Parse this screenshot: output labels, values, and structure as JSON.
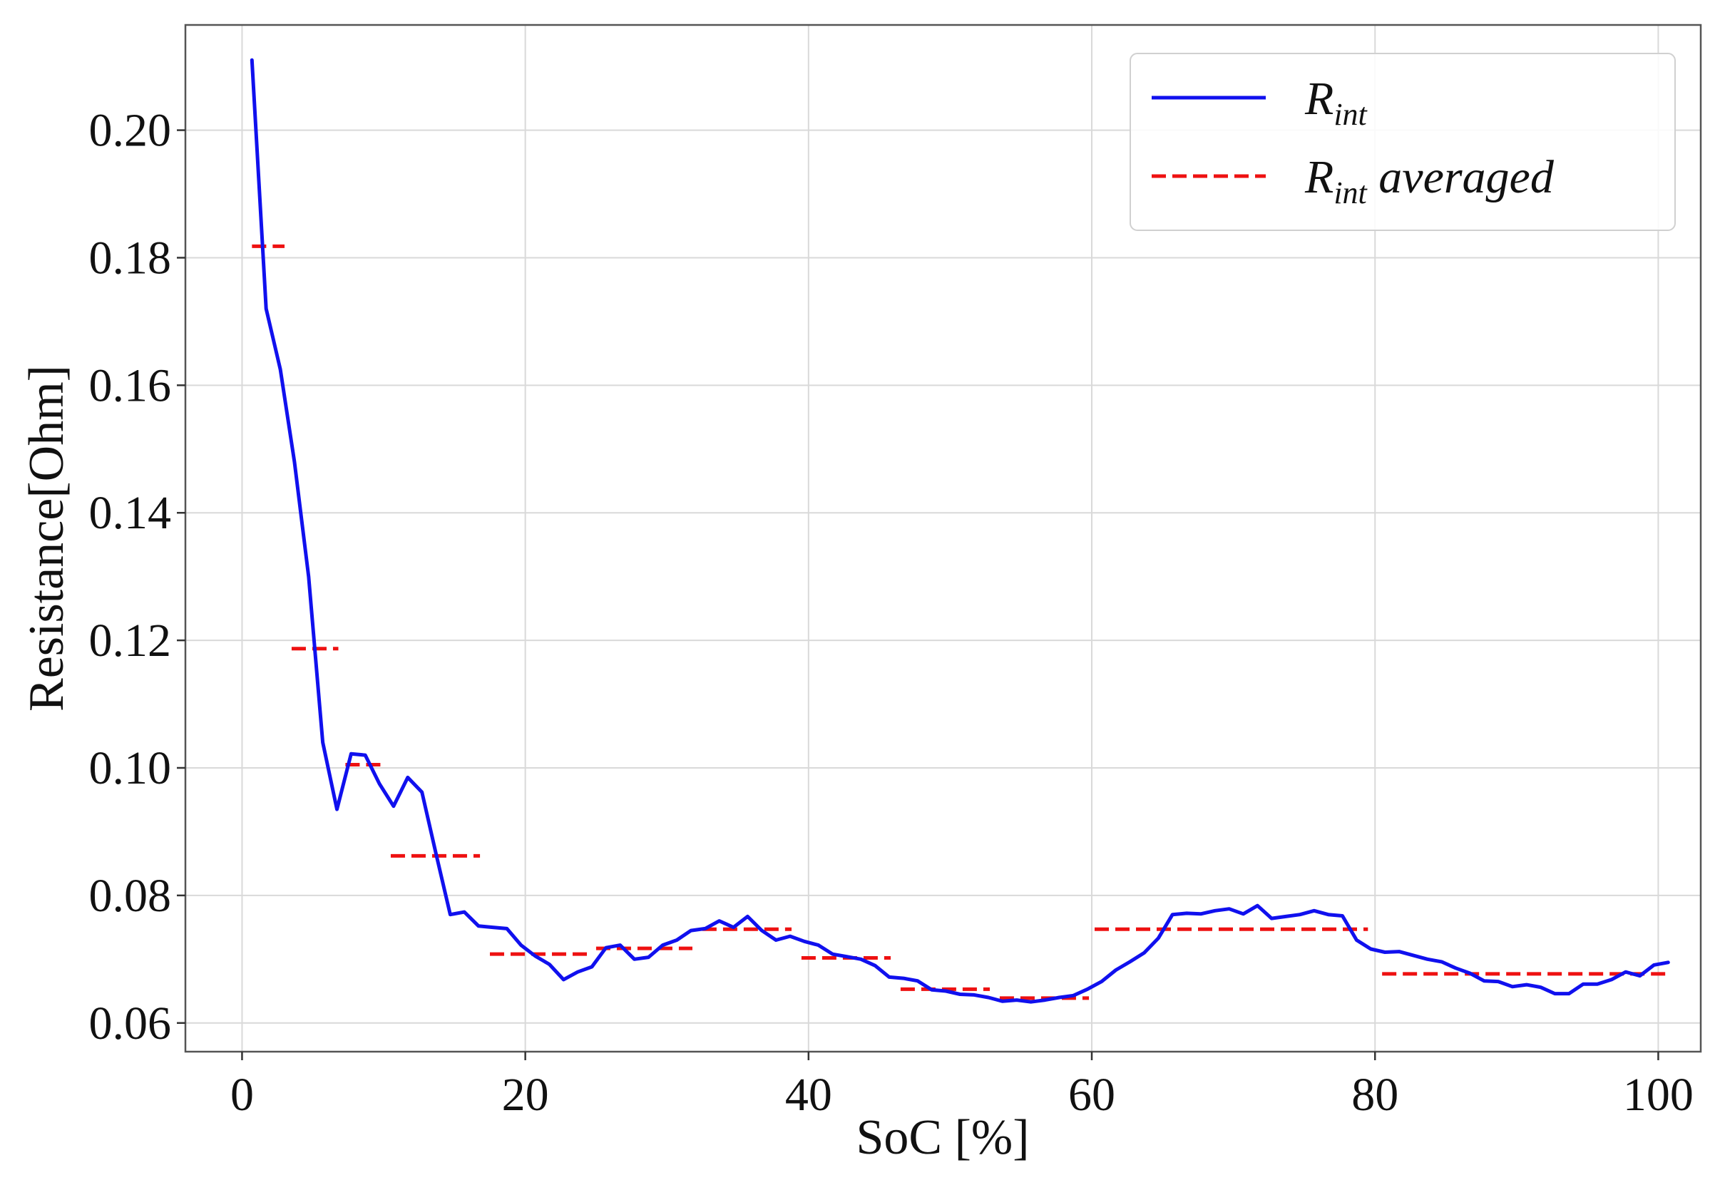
{
  "chart_data": {
    "type": "line",
    "title": "",
    "xlabel": "SoC [%]",
    "ylabel": "Resistance[Ohm]",
    "xlim": [
      -4,
      103
    ],
    "ylim": [
      0.0555,
      0.2165
    ],
    "xticks": [
      0,
      20,
      40,
      60,
      80,
      100
    ],
    "yticks": [
      0.06,
      0.08,
      0.1,
      0.12,
      0.14,
      0.16,
      0.18,
      0.2
    ],
    "ytick_labels": [
      "0.06",
      "0.08",
      "0.10",
      "0.12",
      "0.14",
      "0.16",
      "0.18",
      "0.20"
    ],
    "grid": true,
    "legend_position": "top-right",
    "legend": [
      {
        "main": "R",
        "sub": "int",
        "suffix": ""
      },
      {
        "main": "R",
        "sub": "int",
        "suffix": " averaged"
      }
    ],
    "colors": {
      "rint": "#1010ee",
      "rint_avg": "#ee1111"
    },
    "series": [
      {
        "name": "R_int",
        "style": "solid",
        "points": [
          [
            0.7,
            0.211
          ],
          [
            1.7,
            0.172
          ],
          [
            2.7,
            0.1625
          ],
          [
            3.7,
            0.148
          ],
          [
            4.7,
            0.13
          ],
          [
            5.7,
            0.104
          ],
          [
            6.7,
            0.0935
          ],
          [
            7.7,
            0.1022
          ],
          [
            8.7,
            0.102
          ],
          [
            9.7,
            0.0975
          ],
          [
            10.7,
            0.094
          ],
          [
            11.7,
            0.0985
          ],
          [
            12.7,
            0.0962
          ],
          [
            13.7,
            0.0865
          ],
          [
            14.7,
            0.077
          ],
          [
            15.7,
            0.0774
          ],
          [
            16.7,
            0.0752
          ],
          [
            17.7,
            0.075
          ],
          [
            18.7,
            0.0748
          ],
          [
            19.7,
            0.0722
          ],
          [
            20.7,
            0.0705
          ],
          [
            21.7,
            0.0692
          ],
          [
            22.7,
            0.0668
          ],
          [
            23.7,
            0.068
          ],
          [
            24.7,
            0.0688
          ],
          [
            25.7,
            0.0718
          ],
          [
            26.7,
            0.0722
          ],
          [
            27.7,
            0.07
          ],
          [
            28.7,
            0.0703
          ],
          [
            29.7,
            0.0722
          ],
          [
            30.7,
            0.073
          ],
          [
            31.7,
            0.0745
          ],
          [
            32.7,
            0.0748
          ],
          [
            33.7,
            0.076
          ],
          [
            34.7,
            0.075
          ],
          [
            35.7,
            0.0767
          ],
          [
            36.7,
            0.0745
          ],
          [
            37.7,
            0.073
          ],
          [
            38.7,
            0.0736
          ],
          [
            39.7,
            0.0728
          ],
          [
            40.7,
            0.0722
          ],
          [
            41.7,
            0.0708
          ],
          [
            42.7,
            0.0704
          ],
          [
            43.7,
            0.07
          ],
          [
            44.7,
            0.069
          ],
          [
            45.7,
            0.0672
          ],
          [
            46.7,
            0.067
          ],
          [
            47.7,
            0.0666
          ],
          [
            48.7,
            0.0652
          ],
          [
            49.7,
            0.065
          ],
          [
            50.7,
            0.0645
          ],
          [
            51.7,
            0.0644
          ],
          [
            52.7,
            0.064
          ],
          [
            53.7,
            0.0634
          ],
          [
            54.7,
            0.0636
          ],
          [
            55.7,
            0.0633
          ],
          [
            56.7,
            0.0636
          ],
          [
            57.7,
            0.064
          ],
          [
            58.7,
            0.0643
          ],
          [
            59.7,
            0.0653
          ],
          [
            60.7,
            0.0665
          ],
          [
            61.7,
            0.0683
          ],
          [
            62.7,
            0.0696
          ],
          [
            63.7,
            0.071
          ],
          [
            64.7,
            0.0733
          ],
          [
            65.7,
            0.077
          ],
          [
            66.7,
            0.0772
          ],
          [
            67.7,
            0.0771
          ],
          [
            68.7,
            0.0776
          ],
          [
            69.7,
            0.0779
          ],
          [
            70.7,
            0.0771
          ],
          [
            71.7,
            0.0784
          ],
          [
            72.7,
            0.0764
          ],
          [
            73.7,
            0.0767
          ],
          [
            74.7,
            0.077
          ],
          [
            75.7,
            0.0776
          ],
          [
            76.7,
            0.077
          ],
          [
            77.7,
            0.0768
          ],
          [
            78.7,
            0.073
          ],
          [
            79.7,
            0.0716
          ],
          [
            80.7,
            0.0711
          ],
          [
            81.7,
            0.0712
          ],
          [
            82.7,
            0.0706
          ],
          [
            83.7,
            0.07
          ],
          [
            84.7,
            0.0696
          ],
          [
            85.7,
            0.0686
          ],
          [
            86.7,
            0.0678
          ],
          [
            87.7,
            0.0666
          ],
          [
            88.7,
            0.0665
          ],
          [
            89.7,
            0.0657
          ],
          [
            90.7,
            0.066
          ],
          [
            91.7,
            0.0656
          ],
          [
            92.7,
            0.0646
          ],
          [
            93.7,
            0.0646
          ],
          [
            94.7,
            0.0661
          ],
          [
            95.7,
            0.0661
          ],
          [
            96.7,
            0.0668
          ],
          [
            97.7,
            0.068
          ],
          [
            98.7,
            0.0674
          ],
          [
            99.7,
            0.0691
          ],
          [
            100.7,
            0.0695
          ]
        ]
      },
      {
        "name": "R_int averaged",
        "style": "dashed",
        "segments": [
          {
            "x": [
              0.7,
              3.0
            ],
            "y": 0.1818
          },
          {
            "x": [
              3.5,
              6.8
            ],
            "y": 0.1187
          },
          {
            "x": [
              7.3,
              10.0
            ],
            "y": 0.1005
          },
          {
            "x": [
              10.5,
              16.8
            ],
            "y": 0.0862
          },
          {
            "x": [
              17.5,
              24.8
            ],
            "y": 0.0708
          },
          {
            "x": [
              25.0,
              31.8
            ],
            "y": 0.0717
          },
          {
            "x": [
              32.5,
              38.8
            ],
            "y": 0.0747
          },
          {
            "x": [
              39.5,
              45.8
            ],
            "y": 0.0702
          },
          {
            "x": [
              46.5,
              52.8
            ],
            "y": 0.0653
          },
          {
            "x": [
              53.5,
              59.8
            ],
            "y": 0.0639
          },
          {
            "x": [
              60.2,
              79.5
            ],
            "y": 0.0747
          },
          {
            "x": [
              80.5,
              100.7
            ],
            "y": 0.0677
          }
        ]
      }
    ]
  }
}
